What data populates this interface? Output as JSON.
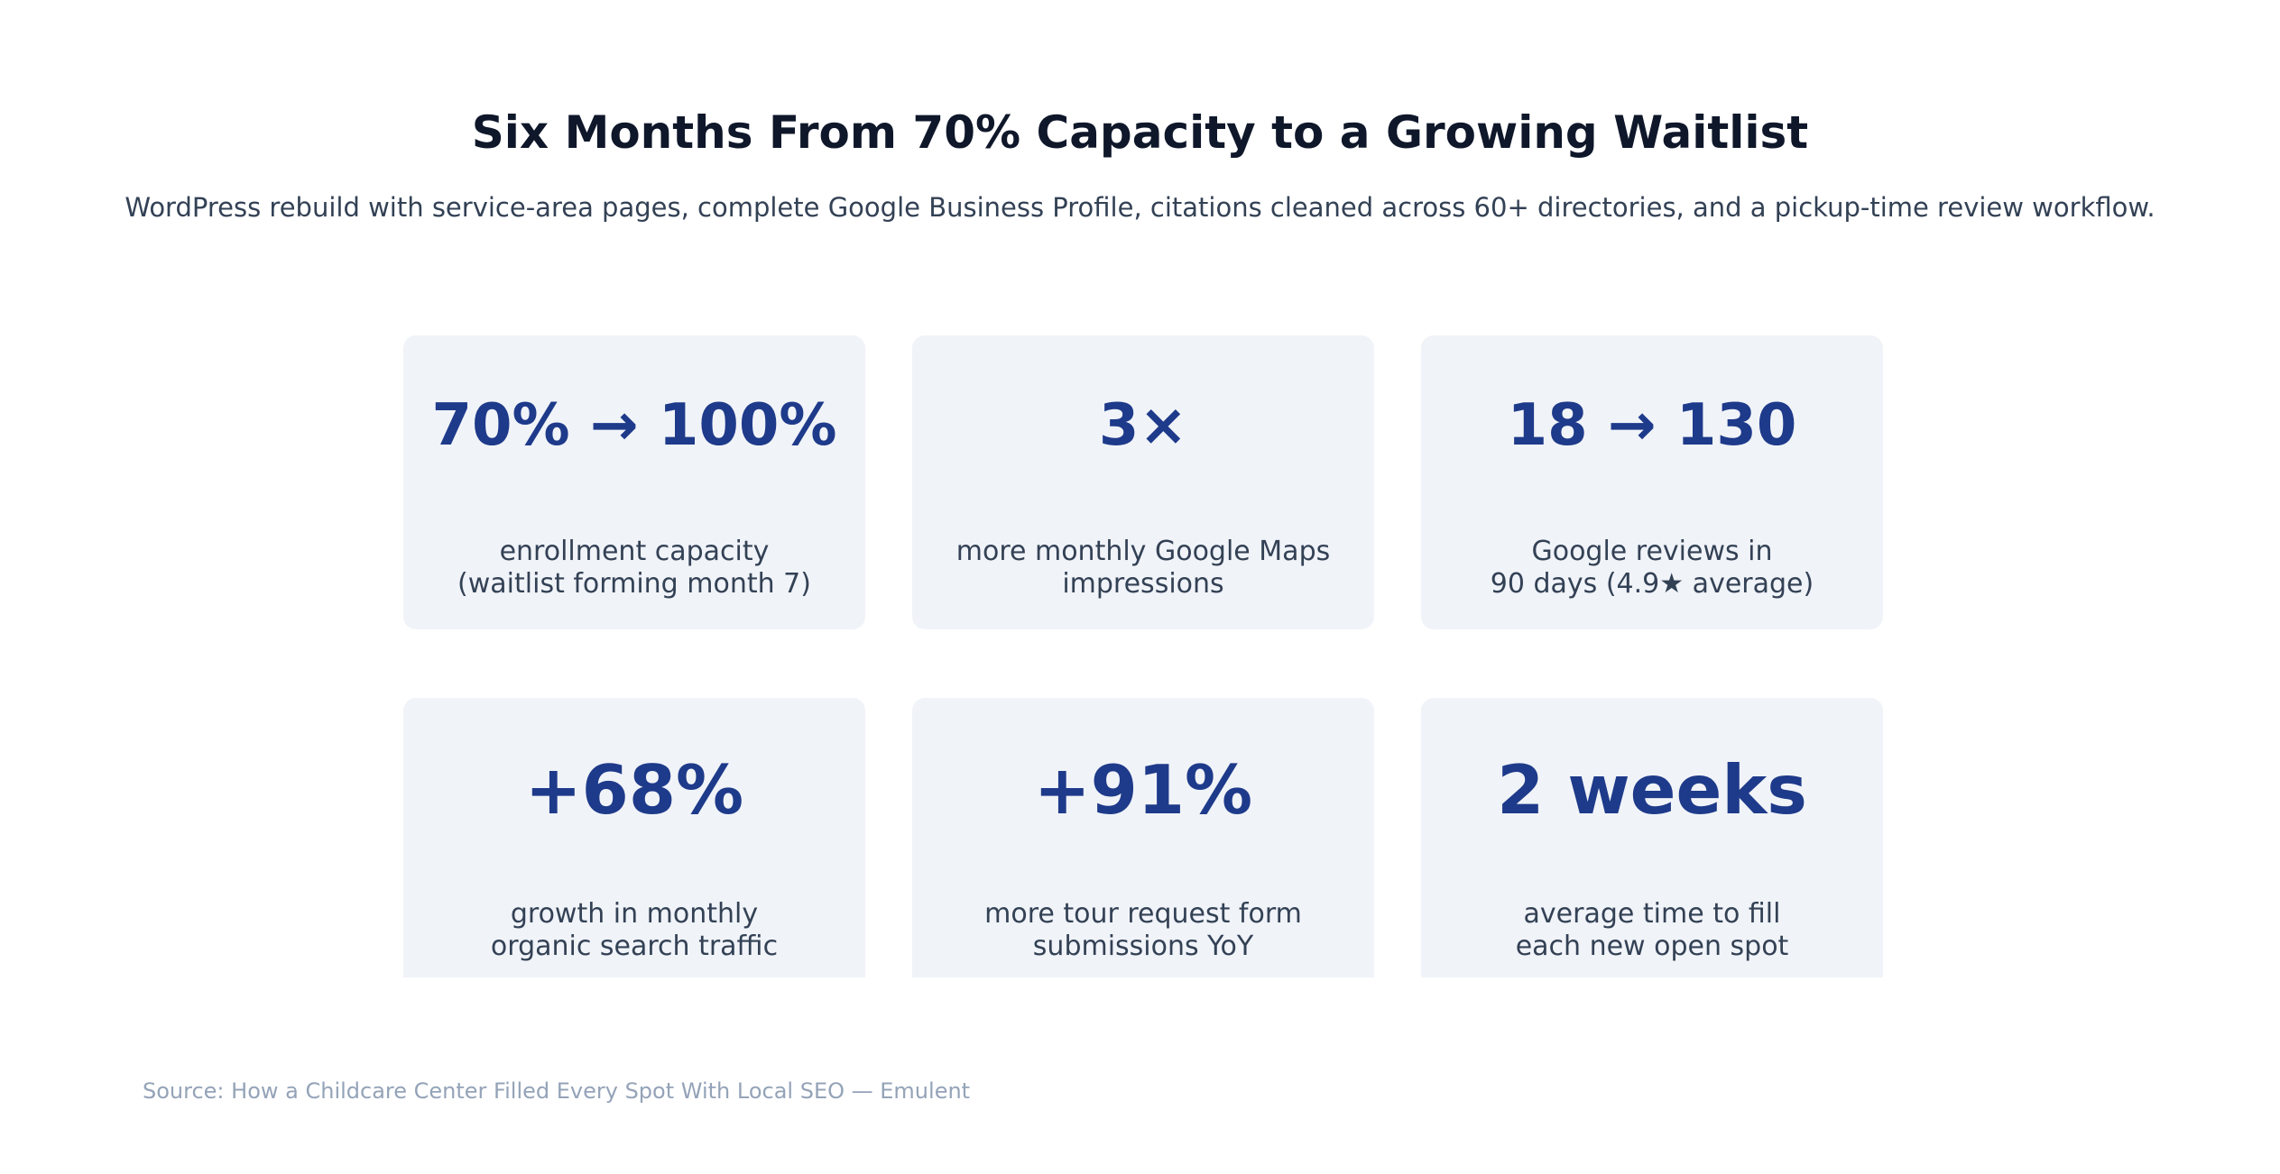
{
  "header": {
    "title": "Six Months From 70% Capacity to a Growing Waitlist",
    "subtitle": "WordPress rebuild with service-area pages, complete Google Business Profile, citations cleaned across 60+ directories, and a pickup-time review workflow."
  },
  "stats": [
    {
      "value": "70% → 100%",
      "label_line1": "enrollment capacity",
      "label_line2": "(waitlist forming month 7)"
    },
    {
      "value": "3×",
      "label_line1": "more monthly Google Maps",
      "label_line2": "impressions"
    },
    {
      "value": "18 → 130",
      "label_line1": "Google reviews in",
      "label_line2": "90 days (4.9★ average)"
    },
    {
      "value": "+68%",
      "label_line1": "growth in monthly",
      "label_line2": "organic search traffic"
    },
    {
      "value": "+91%",
      "label_line1": "more tour request form",
      "label_line2": "submissions YoY"
    },
    {
      "value": "2 weeks",
      "label_line1": "average time to fill",
      "label_line2": "each new open spot"
    }
  ],
  "footer": {
    "source": "Source: How a Childcare Center Filled Every Spot With Local SEO — Emulent"
  },
  "colors": {
    "title": "#0f172a",
    "value": "#1e3a8a",
    "card_bg": "#f0f3f8",
    "label": "#334155",
    "source": "#94a3b8"
  }
}
